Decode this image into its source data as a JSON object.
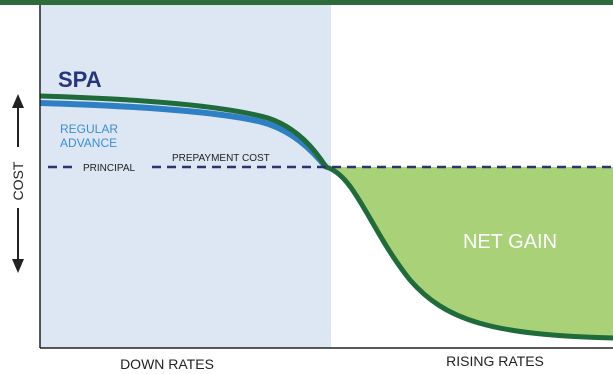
{
  "labels": {
    "spa": "SPA",
    "regular_advance_line1": "REGULAR",
    "regular_advance_line2": "ADVANCE",
    "prepayment_cost": "PREPAYMENT COST",
    "principal": "PRINCIPAL",
    "net_gain": "NET GAIN",
    "y_axis": "COST",
    "x_left": "DOWN RATES",
    "x_right": "RISING RATES"
  },
  "colors": {
    "top_band": "#2e6b3a",
    "down_rates_shade": "#dde6f3",
    "spa_curve": "#1f6b3a",
    "regular_advance_curve": "#2f7fc4",
    "spa_text": "#27357a",
    "regular_advance_text": "#3a8fd4",
    "principal_line": "#2b3370",
    "net_gain_fill": "#a9d178",
    "net_gain_text": "#ffffff",
    "axis": "#222222"
  }
}
